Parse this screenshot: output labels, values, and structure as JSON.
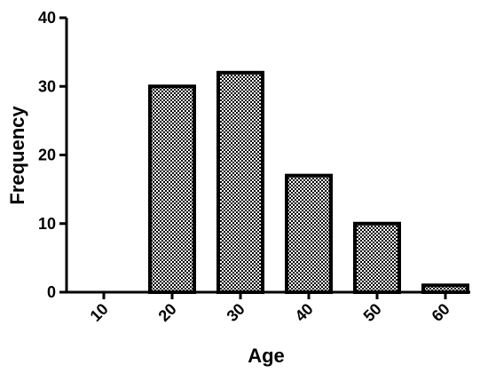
{
  "chart_data": {
    "type": "bar",
    "title": "",
    "xlabel": "Age",
    "ylabel": "Frequency",
    "categories": [
      "10",
      "20",
      "30",
      "40",
      "50",
      "60"
    ],
    "values": [
      0,
      30,
      32,
      17,
      10,
      1
    ],
    "ylim": [
      0,
      40
    ],
    "yticks": [
      "0",
      "10",
      "20",
      "30",
      "40"
    ],
    "grid": false,
    "legend": "none",
    "bar_pattern": "checkerboard",
    "bar_pattern_colors": [
      "#000000",
      "#ffffff"
    ],
    "bar_outline_color": "#000000"
  }
}
